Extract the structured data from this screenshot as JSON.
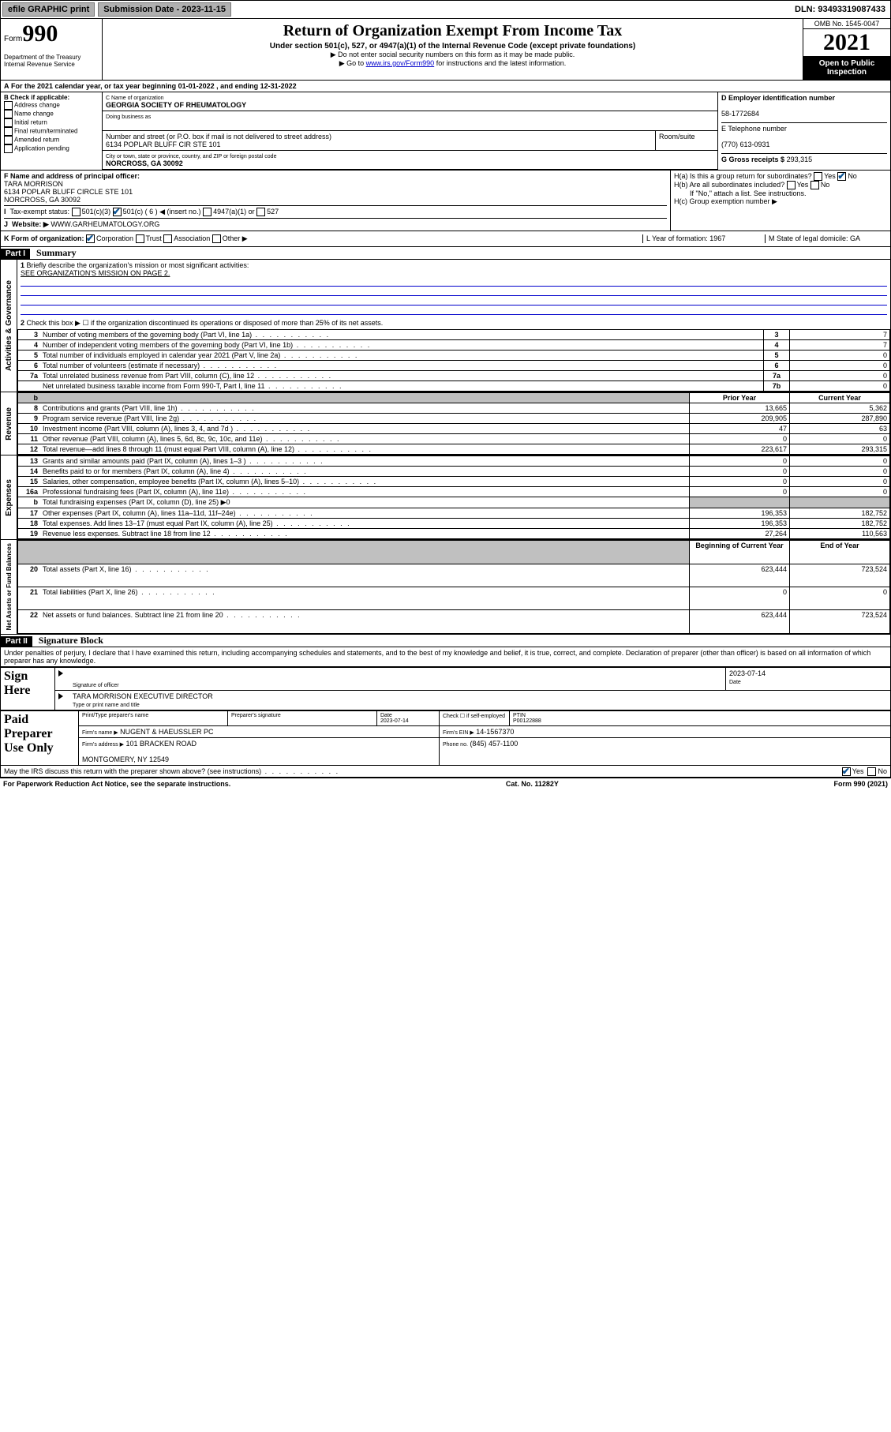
{
  "top": {
    "efile": "efile GRAPHIC print",
    "subdate_lbl": "Submission Date - 2023-11-15",
    "dln": "DLN: 93493319087433"
  },
  "hdr": {
    "form": "Form",
    "num": "990",
    "dept": "Department of the Treasury\nInternal Revenue Service",
    "title": "Return of Organization Exempt From Income Tax",
    "sub1": "Under section 501(c), 527, or 4947(a)(1) of the Internal Revenue Code (except private foundations)",
    "sub2": "▶ Do not enter social security numbers on this form as it may be made public.",
    "sub3a": "▶ Go to ",
    "sub3link": "www.irs.gov/Form990",
    "sub3b": " for instructions and the latest information.",
    "omb": "OMB No. 1545-0047",
    "year": "2021",
    "open": "Open to Public Inspection"
  },
  "A": {
    "text": "For the 2021 calendar year, or tax year beginning 01-01-2022   , and ending 12-31-2022"
  },
  "B": {
    "lbl": "B Check if applicable:",
    "opts": [
      "Address change",
      "Name change",
      "Initial return",
      "Final return/terminated",
      "Amended return",
      "Application pending"
    ]
  },
  "C": {
    "name_lbl": "C Name of organization",
    "name": "GEORGIA SOCIETY OF RHEUMATOLOGY",
    "dba_lbl": "Doing business as",
    "addr_lbl": "Number and street (or P.O. box if mail is not delivered to street address)",
    "room_lbl": "Room/suite",
    "addr": "6134 POPLAR BLUFF CIR STE 101",
    "city_lbl": "City or town, state or province, country, and ZIP or foreign postal code",
    "city": "NORCROSS, GA  30092"
  },
  "D": {
    "lbl": "D Employer identification number",
    "val": "58-1772684"
  },
  "E": {
    "lbl": "E Telephone number",
    "val": "(770) 613-0931"
  },
  "G": {
    "lbl": "G Gross receipts $",
    "val": "293,315"
  },
  "F": {
    "lbl": "F  Name and address of principal officer:",
    "name": "TARA MORRISON",
    "addr": "6134 POPLAR BLUFF CIRCLE STE 101\nNORCROSS, GA  30092"
  },
  "H": {
    "a": "H(a)  Is this a group return for subordinates?",
    "b": "H(b)  Are all subordinates included?",
    "bnote": "If \"No,\" attach a list. See instructions.",
    "c": "H(c)  Group exemption number ▶",
    "yes": "Yes",
    "no": "No"
  },
  "I": {
    "lbl": "Tax-exempt status:",
    "o1": "501(c)(3)",
    "o2": "501(c) ( 6 ) ◀ (insert no.)",
    "o3": "4947(a)(1) or",
    "o4": "527"
  },
  "J": {
    "lbl": "Website: ▶",
    "val": "WWW.GARHEUMATOLOGY.ORG"
  },
  "K": {
    "lbl": "K Form of organization:",
    "opts": [
      "Corporation",
      "Trust",
      "Association",
      "Other ▶"
    ]
  },
  "L": {
    "lbl": "L Year of formation: 1967"
  },
  "M": {
    "lbl": "M State of legal domicile: GA"
  },
  "part1": {
    "hdr": "Part I",
    "title": "Summary"
  },
  "gov": {
    "side": "Activities & Governance",
    "l1": "Briefly describe the organization's mission or most significant activities:",
    "l1val": "SEE ORGANIZATION'S MISSION ON PAGE 2.",
    "l2": "Check this box ▶ ☐  if the organization discontinued its operations or disposed of more than 25% of its net assets.",
    "rows": [
      {
        "n": "3",
        "d": "Number of voting members of the governing body (Part VI, line 1a)",
        "b": "3",
        "v": "7"
      },
      {
        "n": "4",
        "d": "Number of independent voting members of the governing body (Part VI, line 1b)",
        "b": "4",
        "v": "7"
      },
      {
        "n": "5",
        "d": "Total number of individuals employed in calendar year 2021 (Part V, line 2a)",
        "b": "5",
        "v": "0"
      },
      {
        "n": "6",
        "d": "Total number of volunteers (estimate if necessary)",
        "b": "6",
        "v": "0"
      },
      {
        "n": "7a",
        "d": "Total unrelated business revenue from Part VIII, column (C), line 12",
        "b": "7a",
        "v": "0"
      },
      {
        "n": "",
        "d": "Net unrelated business taxable income from Form 990-T, Part I, line 11",
        "b": "7b",
        "v": "0"
      }
    ]
  },
  "finhdr": {
    "prior": "Prior Year",
    "curr": "Current Year"
  },
  "rev": {
    "side": "Revenue",
    "rows": [
      {
        "n": "8",
        "d": "Contributions and grants (Part VIII, line 1h)",
        "p": "13,665",
        "c": "5,362"
      },
      {
        "n": "9",
        "d": "Program service revenue (Part VIII, line 2g)",
        "p": "209,905",
        "c": "287,890"
      },
      {
        "n": "10",
        "d": "Investment income (Part VIII, column (A), lines 3, 4, and 7d )",
        "p": "47",
        "c": "63"
      },
      {
        "n": "11",
        "d": "Other revenue (Part VIII, column (A), lines 5, 6d, 8c, 9c, 10c, and 11e)",
        "p": "0",
        "c": "0"
      },
      {
        "n": "12",
        "d": "Total revenue—add lines 8 through 11 (must equal Part VIII, column (A), line 12)",
        "p": "223,617",
        "c": "293,315"
      }
    ]
  },
  "exp": {
    "side": "Expenses",
    "rows": [
      {
        "n": "13",
        "d": "Grants and similar amounts paid (Part IX, column (A), lines 1–3 )",
        "p": "0",
        "c": "0"
      },
      {
        "n": "14",
        "d": "Benefits paid to or for members (Part IX, column (A), line 4)",
        "p": "0",
        "c": "0"
      },
      {
        "n": "15",
        "d": "Salaries, other compensation, employee benefits (Part IX, column (A), lines 5–10)",
        "p": "0",
        "c": "0"
      },
      {
        "n": "16a",
        "d": "Professional fundraising fees (Part IX, column (A), line 11e)",
        "p": "0",
        "c": "0"
      }
    ],
    "b": "Total fundraising expenses (Part IX, column (D), line 25) ▶0",
    "rows2": [
      {
        "n": "17",
        "d": "Other expenses (Part IX, column (A), lines 11a–11d, 11f–24e)",
        "p": "196,353",
        "c": "182,752"
      },
      {
        "n": "18",
        "d": "Total expenses. Add lines 13–17 (must equal Part IX, column (A), line 25)",
        "p": "196,353",
        "c": "182,752"
      },
      {
        "n": "19",
        "d": "Revenue less expenses. Subtract line 18 from line 12",
        "p": "27,264",
        "c": "110,563"
      }
    ]
  },
  "bal": {
    "side": "Net Assets or Fund Balances",
    "hdr1": "Beginning of Current Year",
    "hdr2": "End of Year",
    "rows": [
      {
        "n": "20",
        "d": "Total assets (Part X, line 16)",
        "p": "623,444",
        "c": "723,524"
      },
      {
        "n": "21",
        "d": "Total liabilities (Part X, line 26)",
        "p": "0",
        "c": "0"
      },
      {
        "n": "22",
        "d": "Net assets or fund balances. Subtract line 21 from line 20",
        "p": "623,444",
        "c": "723,524"
      }
    ]
  },
  "part2": {
    "hdr": "Part II",
    "title": "Signature Block"
  },
  "decl": "Under penalties of perjury, I declare that I have examined this return, including accompanying schedules and statements, and to the best of my knowledge and belief, it is true, correct, and complete. Declaration of preparer (other than officer) is based on all information of which preparer has any knowledge.",
  "sign": {
    "here": "Sign Here",
    "sig_lbl": "Signature of officer",
    "date_lbl": "Date",
    "date": "2023-07-14",
    "name": "TARA MORRISON  EXECUTIVE DIRECTOR",
    "name_lbl": "Type or print name and title"
  },
  "paid": {
    "title": "Paid Preparer Use Only",
    "h1": "Print/Type preparer's name",
    "h2": "Preparer's signature",
    "h3": "Date",
    "h3v": "2023-07-14",
    "h4": "Check ☐ if self-employed",
    "h5": "PTIN",
    "h5v": "P00122888",
    "firm_lbl": "Firm's name   ▶",
    "firm": "NUGENT & HAEUSSLER PC",
    "ein_lbl": "Firm's EIN ▶",
    "ein": "14-1567370",
    "addr_lbl": "Firm's address ▶",
    "addr": "101 BRACKEN ROAD\n\nMONTGOMERY, NY  12549",
    "ph_lbl": "Phone no.",
    "ph": "(845) 457-1100"
  },
  "may": "May the IRS discuss this return with the preparer shown above? (see instructions)",
  "foot": {
    "l": "For Paperwork Reduction Act Notice, see the separate instructions.",
    "c": "Cat. No. 11282Y",
    "r": "Form 990 (2021)"
  }
}
